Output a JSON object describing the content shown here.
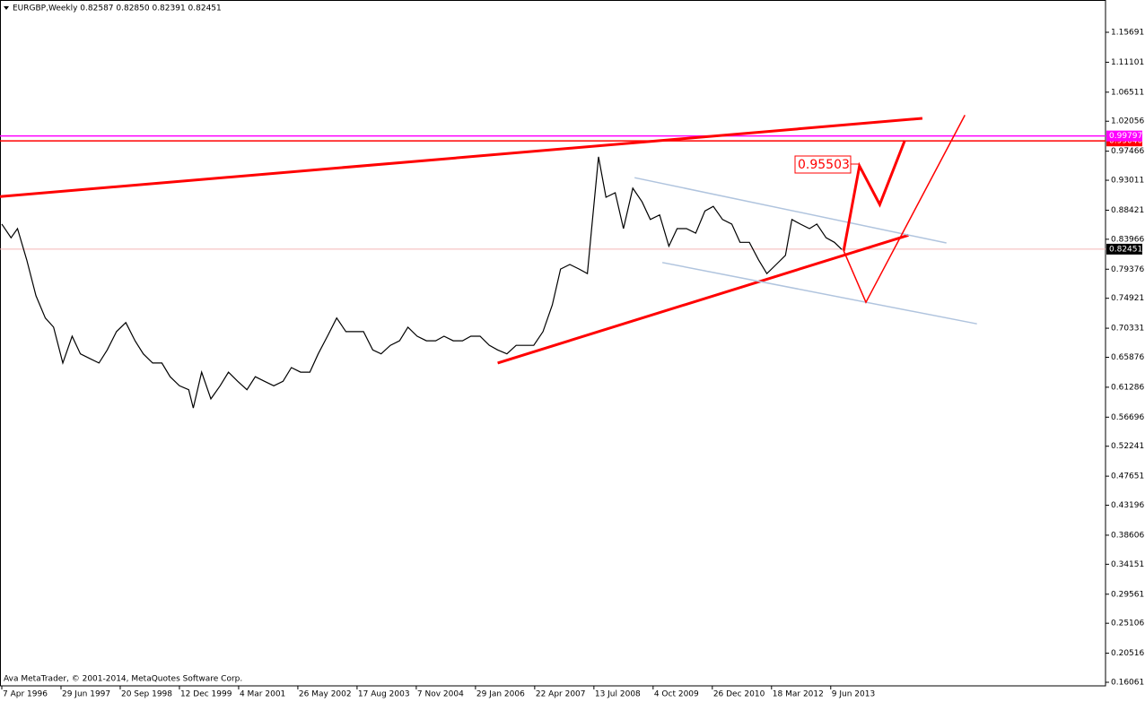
{
  "chart_data": {
    "type": "line",
    "title": "EURGBP,Weekly  0.82587 0.82850 0.82391 0.82451",
    "footer": "Ava MetaTrader, © 2001-2014, MetaQuotes Software Corp.",
    "xlim": [
      -1.94,
      1193
    ],
    "ylim": [
      0.1551,
      1.2064
    ],
    "xticks": [
      {
        "value": 0,
        "label": "7 Apr 1996"
      },
      {
        "value": 64,
        "label": "29 Jun 1997"
      },
      {
        "value": 128,
        "label": "20 Sep 1998"
      },
      {
        "value": 192,
        "label": "12 Dec 1999"
      },
      {
        "value": 256,
        "label": "4 Mar 2001"
      },
      {
        "value": 320,
        "label": "26 May 2002"
      },
      {
        "value": 384,
        "label": "17 Aug 2003"
      },
      {
        "value": 448,
        "label": "7 Nov 2004"
      },
      {
        "value": 512,
        "label": "29 Jan 2006"
      },
      {
        "value": 576,
        "label": "22 Apr 2007"
      },
      {
        "value": 640,
        "label": "13 Jul 2008"
      },
      {
        "value": 704,
        "label": "4 Oct 2009"
      },
      {
        "value": 768,
        "label": "26 Dec 2010"
      },
      {
        "value": 832,
        "label": "18 Mar 2012"
      },
      {
        "value": 896,
        "label": "9 Jun 2013"
      }
    ],
    "yticks": [
      1.15691,
      1.11101,
      1.06511,
      1.02056,
      0.97466,
      0.93011,
      0.88421,
      0.83966,
      0.79376,
      0.74921,
      0.70331,
      0.65876,
      0.61286,
      0.56696,
      0.52241,
      0.47651,
      0.43196,
      0.38606,
      0.34151,
      0.29561,
      0.25106,
      0.20516,
      0.16061
    ],
    "series": [
      {
        "color": "#000000",
        "x": [
          0,
          10,
          17,
          27,
          37,
          47,
          56,
          66,
          76,
          85,
          95,
          105,
          114,
          124,
          134,
          144,
          153,
          163,
          173,
          182,
          192,
          202,
          207,
          216,
          226,
          236,
          245,
          255,
          265,
          274,
          284,
          294,
          304,
          313,
          323,
          333,
          342,
          352,
          362,
          372,
          381,
          391,
          401,
          410,
          420,
          430,
          439,
          449,
          459,
          469,
          478,
          488,
          498,
          507,
          517,
          527,
          536,
          546,
          556,
          566,
          575,
          585,
          595,
          604,
          614,
          624,
          633,
          638,
          645,
          653,
          663,
          672,
          682,
          692,
          701,
          711,
          721,
          730,
          740,
          750,
          760,
          769,
          779,
          789,
          798,
          808,
          818,
          827,
          837,
          847,
          854,
          863,
          873,
          881,
          891,
          900,
          908
        ],
        "values": [
          0.863,
          0.842,
          0.856,
          0.808,
          0.753,
          0.719,
          0.705,
          0.65,
          0.691,
          0.664,
          0.657,
          0.65,
          0.67,
          0.698,
          0.712,
          0.684,
          0.664,
          0.65,
          0.65,
          0.629,
          0.615,
          0.609,
          0.581,
          0.636,
          0.595,
          0.615,
          0.636,
          0.622,
          0.609,
          0.629,
          0.622,
          0.615,
          0.622,
          0.643,
          0.636,
          0.636,
          0.664,
          0.691,
          0.719,
          0.698,
          0.698,
          0.698,
          0.67,
          0.664,
          0.677,
          0.684,
          0.705,
          0.691,
          0.684,
          0.684,
          0.691,
          0.684,
          0.684,
          0.691,
          0.691,
          0.677,
          0.67,
          0.664,
          0.677,
          0.677,
          0.677,
          0.698,
          0.739,
          0.794,
          0.801,
          0.794,
          0.787,
          0.863,
          0.966,
          0.904,
          0.911,
          0.856,
          0.918,
          0.897,
          0.87,
          0.877,
          0.829,
          0.856,
          0.856,
          0.849,
          0.883,
          0.89,
          0.87,
          0.863,
          0.835,
          0.835,
          0.808,
          0.787,
          0.801,
          0.815,
          0.87,
          0.863,
          0.856,
          0.863,
          0.842,
          0.835,
          0.824
        ]
      }
    ],
    "hlines": [
      {
        "value": 0.82451,
        "color": "#f4b6b6",
        "tag_color": "#000000"
      },
      {
        "value": 0.9904,
        "label": "0.99040",
        "color": "#ff0000",
        "tag_color": "#ff0000"
      },
      {
        "value": 0.99797,
        "color": "#ff00ff",
        "tag_color": "#ff00ff"
      }
    ],
    "trendlines": [
      {
        "color": "#ff0000",
        "style": "thick",
        "x": [
          -1.94,
          995
        ],
        "y": [
          0.905,
          1.025
        ]
      },
      {
        "color": "#ff0000",
        "style": "thick",
        "x": [
          536,
          980
        ],
        "y": [
          0.65,
          0.846
        ]
      },
      {
        "color": "#b0c4de",
        "style": "thin",
        "x": [
          684,
          1021
        ],
        "y": [
          0.934,
          0.834
        ]
      },
      {
        "color": "#b0c4de",
        "style": "thin",
        "x": [
          714,
          1054
        ],
        "y": [
          0.804,
          0.71
        ]
      },
      {
        "color": "#ff0000",
        "style": "thick",
        "x": [
          910,
          927,
          949,
          976
        ],
        "y": [
          0.822,
          0.952,
          0.893,
          0.991
        ]
      },
      {
        "color": "#ff0000",
        "style": "thin",
        "x": [
          910,
          934,
          1041
        ],
        "y": [
          0.822,
          0.743,
          1.03
        ]
      }
    ],
    "annotation": {
      "text": "0.95503",
      "color": "#ff0000"
    }
  }
}
